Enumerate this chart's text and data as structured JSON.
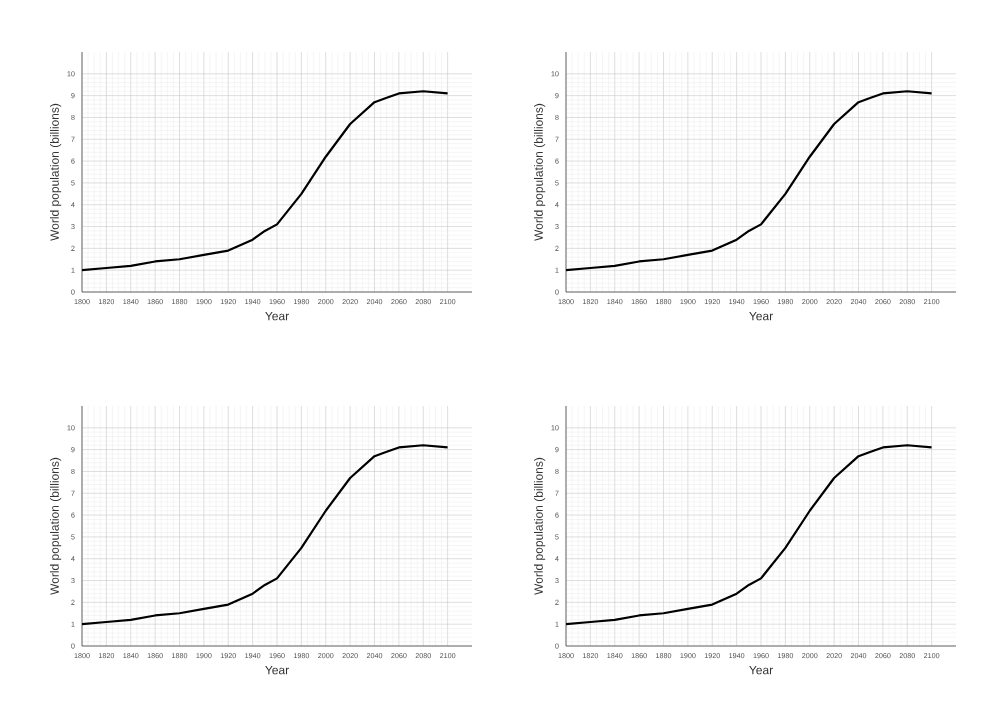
{
  "chart_data": [
    {
      "type": "line",
      "xlabel": "Year",
      "ylabel": "World population (billions)",
      "x": [
        1800,
        1820,
        1840,
        1860,
        1880,
        1900,
        1920,
        1940,
        1950,
        1960,
        1980,
        2000,
        2020,
        2040,
        2050,
        2060,
        2080,
        2100
      ],
      "values": [
        1.0,
        1.1,
        1.2,
        1.4,
        1.5,
        1.7,
        1.9,
        2.4,
        2.8,
        3.1,
        4.5,
        6.2,
        7.7,
        8.7,
        8.9,
        9.1,
        9.2,
        9.1
      ],
      "color": "#000000",
      "xlim": [
        1800,
        2120
      ],
      "ylim": [
        0,
        11
      ],
      "xticks": [
        1800,
        1820,
        1840,
        1860,
        1880,
        1900,
        1920,
        1940,
        1960,
        1980,
        2000,
        2020,
        2040,
        2060,
        2080,
        2100
      ],
      "yticks": [
        0,
        1,
        2,
        3,
        4,
        5,
        6,
        7,
        8,
        9,
        10
      ],
      "grid": true
    },
    {
      "type": "line",
      "xlabel": "Year",
      "ylabel": "World population (billions)",
      "x": [
        1800,
        1820,
        1840,
        1860,
        1880,
        1900,
        1920,
        1940,
        1950,
        1960,
        1980,
        2000,
        2020,
        2040,
        2050,
        2060,
        2080,
        2100
      ],
      "values": [
        1.0,
        1.1,
        1.2,
        1.4,
        1.5,
        1.7,
        1.9,
        2.4,
        2.8,
        3.1,
        4.5,
        6.2,
        7.7,
        8.7,
        8.9,
        9.1,
        9.2,
        9.1
      ],
      "color": "#000000",
      "xlim": [
        1800,
        2120
      ],
      "ylim": [
        0,
        11
      ],
      "xticks": [
        1800,
        1820,
        1840,
        1860,
        1880,
        1900,
        1920,
        1940,
        1960,
        1980,
        2000,
        2020,
        2040,
        2060,
        2080,
        2100
      ],
      "yticks": [
        0,
        1,
        2,
        3,
        4,
        5,
        6,
        7,
        8,
        9,
        10
      ],
      "grid": true
    },
    {
      "type": "line",
      "xlabel": "Year",
      "ylabel": "World population (billions)",
      "x": [
        1800,
        1820,
        1840,
        1860,
        1880,
        1900,
        1920,
        1940,
        1950,
        1960,
        1980,
        2000,
        2020,
        2040,
        2050,
        2060,
        2080,
        2100
      ],
      "values": [
        1.0,
        1.1,
        1.2,
        1.4,
        1.5,
        1.7,
        1.9,
        2.4,
        2.8,
        3.1,
        4.5,
        6.2,
        7.7,
        8.7,
        8.9,
        9.1,
        9.2,
        9.1
      ],
      "color": "#000000",
      "xlim": [
        1800,
        2120
      ],
      "ylim": [
        0,
        11
      ],
      "xticks": [
        1800,
        1820,
        1840,
        1860,
        1880,
        1900,
        1920,
        1940,
        1960,
        1980,
        2000,
        2020,
        2040,
        2060,
        2080,
        2100
      ],
      "yticks": [
        0,
        1,
        2,
        3,
        4,
        5,
        6,
        7,
        8,
        9,
        10
      ],
      "grid": true
    },
    {
      "type": "line",
      "xlabel": "Year",
      "ylabel": "World population (billions)",
      "x": [
        1800,
        1820,
        1840,
        1860,
        1880,
        1900,
        1920,
        1940,
        1950,
        1960,
        1980,
        2000,
        2020,
        2040,
        2050,
        2060,
        2080,
        2100
      ],
      "values": [
        1.0,
        1.1,
        1.2,
        1.4,
        1.5,
        1.7,
        1.9,
        2.4,
        2.8,
        3.1,
        4.5,
        6.2,
        7.7,
        8.7,
        8.9,
        9.1,
        9.2,
        9.1
      ],
      "color": "#000000",
      "xlim": [
        1800,
        2120
      ],
      "ylim": [
        0,
        11
      ],
      "xticks": [
        1800,
        1820,
        1840,
        1860,
        1880,
        1900,
        1920,
        1940,
        1960,
        1980,
        2000,
        2020,
        2040,
        2060,
        2080,
        2100
      ],
      "yticks": [
        0,
        1,
        2,
        3,
        4,
        5,
        6,
        7,
        8,
        9,
        10
      ],
      "grid": true
    }
  ]
}
